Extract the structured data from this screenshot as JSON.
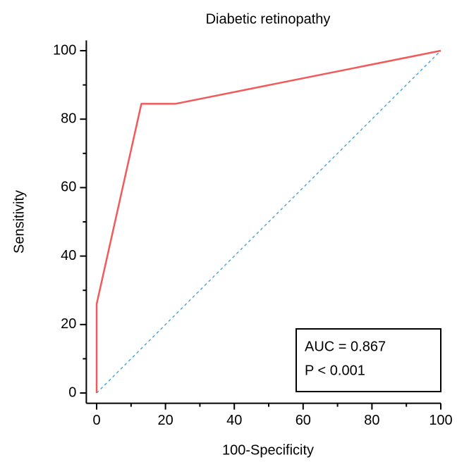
{
  "chart_data": {
    "type": "line",
    "title": "Diabetic retinopathy",
    "xlabel": "100-Specificity",
    "ylabel": "Sensitivity",
    "x": [
      0,
      0,
      13,
      23,
      100
    ],
    "series": [
      {
        "color": "#f05a5a",
        "values": [
          0,
          26,
          84.5,
          84.5,
          100
        ]
      }
    ],
    "diagonal": {
      "color": "#3a9ad9",
      "x": [
        0,
        100
      ],
      "values": [
        0,
        100
      ]
    },
    "xlim": [
      -3,
      100
    ],
    "ylim": [
      -3,
      103
    ],
    "xticks": [
      0,
      20,
      40,
      60,
      80,
      100
    ],
    "yticks": [
      0,
      20,
      40,
      60,
      80,
      100
    ],
    "xminorticks": [
      10,
      30,
      50,
      70,
      90
    ],
    "yminorticks": [
      10,
      30,
      50,
      70,
      90
    ],
    "annotations": [
      "AUC = 0.867",
      "P < 0.001"
    ]
  }
}
